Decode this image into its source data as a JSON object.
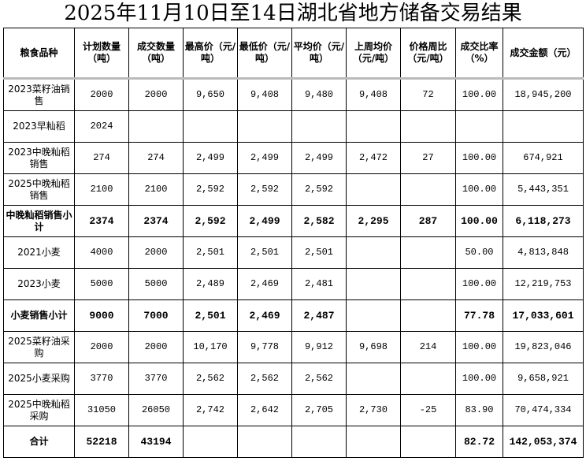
{
  "title": "2025年11月10日至14日湖北省地方储备交易结果",
  "headers": [
    "粮食品种",
    "计划数量（吨）",
    "成交数量（吨）",
    "最高价（元/吨）",
    "最低价（元/吨）",
    "平均价（元/吨）",
    "上周均价（元/吨）",
    "价格周比（元/吨）",
    "成交比率（%）",
    "成交金额（元）"
  ],
  "rows": [
    {
      "bold": false,
      "cells": [
        "2023菜籽油销售",
        "2000",
        "2000",
        "9,650",
        "9,408",
        "9,480",
        "9,408",
        "72",
        "100.00",
        "18,945,200"
      ]
    },
    {
      "bold": false,
      "cells": [
        "2023早籼稻",
        "2024",
        "",
        "",
        "",
        "",
        "",
        "",
        "",
        ""
      ]
    },
    {
      "bold": false,
      "cells": [
        "2023中晚籼稻销售",
        "274",
        "274",
        "2,499",
        "2,499",
        "2,499",
        "2,472",
        "27",
        "100.00",
        "674,921"
      ]
    },
    {
      "bold": false,
      "cells": [
        "2025中晚籼稻销售",
        "2100",
        "2100",
        "2,592",
        "2,592",
        "2,592",
        "",
        "",
        "100.00",
        "5,443,351"
      ]
    },
    {
      "bold": true,
      "cells": [
        "中晚籼稻销售小计",
        "2374",
        "2374",
        "2,592",
        "2,499",
        "2,582",
        "2,295",
        "287",
        "100.00",
        "6,118,273"
      ]
    },
    {
      "bold": false,
      "cells": [
        "2021小麦",
        "4000",
        "2000",
        "2,501",
        "2,501",
        "2,501",
        "",
        "",
        "50.00",
        "4,813,848"
      ]
    },
    {
      "bold": false,
      "cells": [
        "2023小麦",
        "5000",
        "5000",
        "2,489",
        "2,469",
        "2,481",
        "",
        "",
        "100.00",
        "12,219,753"
      ]
    },
    {
      "bold": true,
      "cells": [
        "小麦销售小计",
        "9000",
        "7000",
        "2,501",
        "2,469",
        "2,487",
        "",
        "",
        "77.78",
        "17,033,601"
      ]
    },
    {
      "bold": false,
      "cells": [
        "2025菜籽油采购",
        "2000",
        "2000",
        "10,170",
        "9,778",
        "9,912",
        "9,698",
        "214",
        "100.00",
        "19,823,046"
      ]
    },
    {
      "bold": false,
      "cells": [
        "2025小麦采购",
        "3770",
        "3770",
        "2,562",
        "2,562",
        "2,562",
        "",
        "",
        "100.00",
        "9,658,921"
      ]
    },
    {
      "bold": false,
      "cells": [
        "2025中晚籼稻采购",
        "31050",
        "26050",
        "2,742",
        "2,642",
        "2,705",
        "2,730",
        "-25",
        "83.90",
        "70,474,334"
      ]
    },
    {
      "bold": true,
      "cells": [
        "合计",
        "52218",
        "43194",
        "",
        "",
        "",
        "",
        "",
        "82.72",
        "142,053,374"
      ]
    }
  ]
}
